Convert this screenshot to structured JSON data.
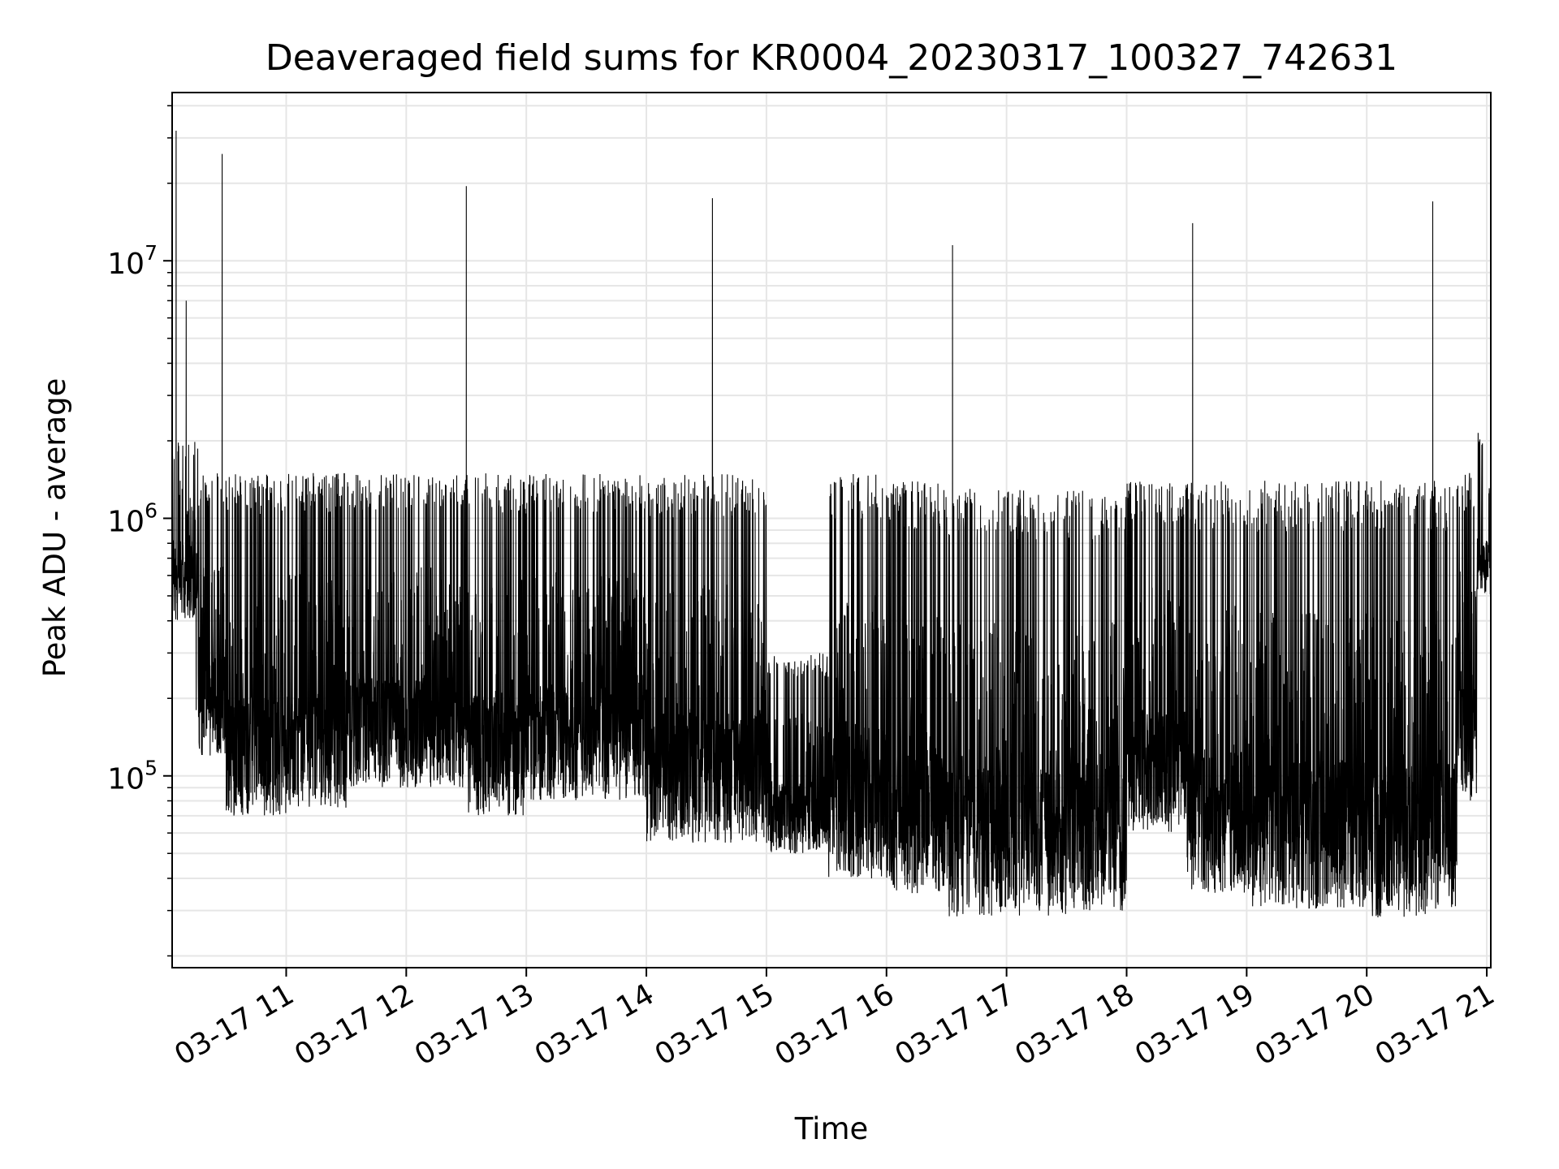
{
  "chart_data": {
    "type": "line",
    "title": "Deaveraged field sums for KR0004_20230317_100327_742631",
    "xlabel": "Time",
    "ylabel": "Peak ADU - average",
    "yscale": "log",
    "ylim": [
      18000,
      45000000
    ],
    "xlim": [
      "2023-03-17 10:03",
      "2023-03-17 21:02"
    ],
    "grid": true,
    "line_color": "#000000",
    "grid_color": "#e6e6e6",
    "x_ticks": [
      {
        "t": "2023-03-17 11:00",
        "label": "03-17 11"
      },
      {
        "t": "2023-03-17 12:00",
        "label": "03-17 12"
      },
      {
        "t": "2023-03-17 13:00",
        "label": "03-17 13"
      },
      {
        "t": "2023-03-17 14:00",
        "label": "03-17 14"
      },
      {
        "t": "2023-03-17 15:00",
        "label": "03-17 15"
      },
      {
        "t": "2023-03-17 16:00",
        "label": "03-17 16"
      },
      {
        "t": "2023-03-17 17:00",
        "label": "03-17 17"
      },
      {
        "t": "2023-03-17 18:00",
        "label": "03-17 18"
      },
      {
        "t": "2023-03-17 19:00",
        "label": "03-17 19"
      },
      {
        "t": "2023-03-17 20:00",
        "label": "03-17 20"
      },
      {
        "t": "2023-03-17 21:00",
        "label": "03-17 21"
      }
    ],
    "y_ticks": [
      {
        "v": 100000,
        "base": "10",
        "exp": "5"
      },
      {
        "v": 1000000,
        "base": "10",
        "exp": "6"
      },
      {
        "v": 10000000,
        "base": "10",
        "exp": "7"
      }
    ],
    "series": [
      {
        "x": [
          "2023-03-17 10:03",
          "2023-03-17 10:04",
          "2023-03-17 10:05",
          "2023-03-17 10:06",
          "2023-03-17 10:07",
          "2023-03-17 10:08",
          "2023-03-17 10:10",
          "2023-03-17 10:12",
          "2023-03-17 10:14",
          "2023-03-17 10:15",
          "2023-03-17 10:16",
          "2023-03-17 10:18",
          "2023-03-17 10:20",
          "2023-03-17 10:22",
          "2023-03-17 10:24",
          "2023-03-17 10:26",
          "2023-03-17 10:28",
          "2023-03-17 10:30",
          "2023-03-17 10:31",
          "2023-03-17 10:32",
          "2023-03-17 10:34",
          "2023-03-17 10:36",
          "2023-03-17 10:40",
          "2023-03-17 10:45",
          "2023-03-17 10:50",
          "2023-03-17 10:55",
          "2023-03-17 11:05",
          "2023-03-17 11:15",
          "2023-03-17 11:30",
          "2023-03-17 11:45",
          "2023-03-17 12:00",
          "2023-03-17 12:15",
          "2023-03-17 12:30",
          "2023-03-17 12:33",
          "2023-03-17 12:45",
          "2023-03-17 13:00",
          "2023-03-17 13:20",
          "2023-03-17 13:40",
          "2023-03-17 14:00",
          "2023-03-17 14:20",
          "2023-03-17 14:33",
          "2023-03-17 14:45",
          "2023-03-17 15:00",
          "2023-03-17 15:20",
          "2023-03-17 15:40",
          "2023-03-17 16:00",
          "2023-03-17 16:20",
          "2023-03-17 16:33",
          "2023-03-17 16:45",
          "2023-03-17 17:00",
          "2023-03-17 17:20",
          "2023-03-17 17:40",
          "2023-03-17 18:00",
          "2023-03-17 18:20",
          "2023-03-17 18:33",
          "2023-03-17 18:45",
          "2023-03-17 19:00",
          "2023-03-17 19:20",
          "2023-03-17 19:40",
          "2023-03-17 20:00",
          "2023-03-17 20:20",
          "2023-03-17 20:33",
          "2023-03-17 20:45",
          "2023-03-17 20:50",
          "2023-03-17 20:55",
          "2023-03-17 21:00",
          "2023-03-17 21:02"
        ],
        "y": [
          400000,
          1700000,
          32000000,
          1500000,
          1400000,
          1300000,
          7000000,
          1200000,
          700000,
          180000,
          600000,
          450000,
          200000,
          120000,
          150000,
          130000,
          26000000,
          150000,
          110000,
          100000,
          95000,
          100000,
          90000,
          85000,
          90000,
          110000,
          150000,
          170000,
          180000,
          160000,
          190000,
          170000,
          19500000,
          170000,
          150000,
          140000,
          150000,
          145000,
          140000,
          90000,
          17500000,
          85000,
          90000,
          80000,
          75000,
          80000,
          75000,
          11500000,
          60000,
          55000,
          50000,
          55000,
          130000,
          120000,
          14000000,
          90000,
          65000,
          55000,
          60000,
          50000,
          45000,
          17000000,
          45000,
          90000,
          350000,
          800000,
          1500000
        ]
      }
    ],
    "bands": [
      {
        "from": "2023-03-17 10:03",
        "to": "2023-03-17 10:16",
        "low": 400000,
        "high": 2000000
      },
      {
        "from": "2023-03-17 10:16",
        "to": "2023-03-17 10:30",
        "low": 120000,
        "high": 1500000
      },
      {
        "from": "2023-03-17 10:30",
        "to": "2023-03-17 11:00",
        "low": 70000,
        "high": 1500000
      },
      {
        "from": "2023-03-17 11:00",
        "to": "2023-03-17 11:30",
        "low": 75000,
        "high": 1500000
      },
      {
        "from": "2023-03-17 11:30",
        "to": "2023-03-17 12:00",
        "low": 90000,
        "high": 1500000
      },
      {
        "from": "2023-03-17 12:00",
        "to": "2023-03-17 12:30",
        "low": 90000,
        "high": 1500000
      },
      {
        "from": "2023-03-17 12:30",
        "to": "2023-03-17 13:00",
        "low": 70000,
        "high": 1500000
      },
      {
        "from": "2023-03-17 13:00",
        "to": "2023-03-17 13:30",
        "low": 80000,
        "high": 1500000
      },
      {
        "from": "2023-03-17 13:30",
        "to": "2023-03-17 14:00",
        "low": 80000,
        "high": 1500000
      },
      {
        "from": "2023-03-17 14:00",
        "to": "2023-03-17 14:30",
        "low": 55000,
        "high": 1500000
      },
      {
        "from": "2023-03-17 14:30",
        "to": "2023-03-17 15:00",
        "low": 55000,
        "high": 1500000
      },
      {
        "from": "2023-03-17 15:00",
        "to": "2023-03-17 15:30",
        "low": 50000,
        "high": 300000
      },
      {
        "from": "2023-03-17 15:30",
        "to": "2023-03-17 16:00",
        "low": 40000,
        "high": 1500000
      },
      {
        "from": "2023-03-17 16:00",
        "to": "2023-03-17 16:30",
        "low": 35000,
        "high": 1400000
      },
      {
        "from": "2023-03-17 16:30",
        "to": "2023-03-17 17:00",
        "low": 28000,
        "high": 1300000
      },
      {
        "from": "2023-03-17 17:00",
        "to": "2023-03-17 17:30",
        "low": 28000,
        "high": 1300000
      },
      {
        "from": "2023-03-17 17:30",
        "to": "2023-03-17 18:00",
        "low": 30000,
        "high": 1300000
      },
      {
        "from": "2023-03-17 18:00",
        "to": "2023-03-17 18:30",
        "low": 60000,
        "high": 1400000
      },
      {
        "from": "2023-03-17 18:30",
        "to": "2023-03-17 19:00",
        "low": 35000,
        "high": 1400000
      },
      {
        "from": "2023-03-17 19:00",
        "to": "2023-03-17 19:30",
        "low": 30000,
        "high": 1400000
      },
      {
        "from": "2023-03-17 19:30",
        "to": "2023-03-17 20:00",
        "low": 30000,
        "high": 1400000
      },
      {
        "from": "2023-03-17 20:00",
        "to": "2023-03-17 20:30",
        "low": 28000,
        "high": 1400000
      },
      {
        "from": "2023-03-17 20:30",
        "to": "2023-03-17 20:45",
        "low": 30000,
        "high": 1400000
      },
      {
        "from": "2023-03-17 20:45",
        "to": "2023-03-17 20:55",
        "low": 80000,
        "high": 1500000
      },
      {
        "from": "2023-03-17 20:55",
        "to": "2023-03-17 21:02",
        "low": 500000,
        "high": 2200000
      }
    ]
  }
}
